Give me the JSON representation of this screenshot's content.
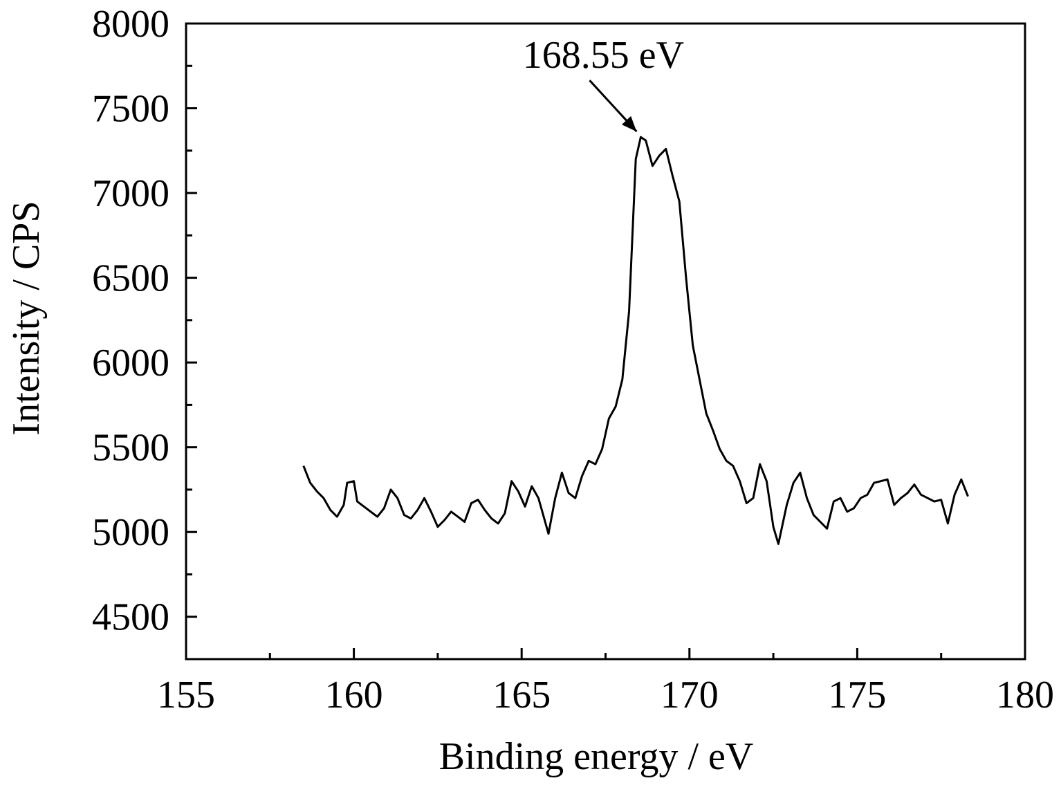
{
  "chart_data": {
    "type": "line",
    "title": "",
    "xlabel": "Binding energy / eV",
    "ylabel": "Intensity / CPS",
    "xlim": [
      155,
      180
    ],
    "ylim": [
      4250,
      8000
    ],
    "x_ticks": [
      155,
      160,
      165,
      170,
      175,
      180
    ],
    "x_minor_ticks": [
      157.5,
      162.5,
      167.5,
      172.5,
      177.5
    ],
    "y_ticks": [
      4500,
      5000,
      5500,
      6000,
      6500,
      7000,
      7500,
      8000
    ],
    "y_minor_ticks": [
      4750,
      5250,
      5750,
      6250,
      6750,
      7250,
      7750
    ],
    "grid": false,
    "legend": "none",
    "annotation": {
      "text": "168.55 eV",
      "x": 168.55,
      "y": 7330
    },
    "series": [
      {
        "x": [
          158.5,
          158.7,
          158.9,
          159.1,
          159.3,
          159.5,
          159.7,
          159.8,
          160.0,
          160.1,
          160.3,
          160.5,
          160.7,
          160.9,
          161.1,
          161.3,
          161.5,
          161.7,
          161.9,
          162.1,
          162.3,
          162.5,
          162.7,
          162.9,
          163.1,
          163.3,
          163.5,
          163.7,
          163.9,
          164.1,
          164.3,
          164.5,
          164.7,
          164.9,
          165.1,
          165.3,
          165.5,
          165.8,
          166.0,
          166.2,
          166.4,
          166.6,
          166.8,
          167.0,
          167.2,
          167.4,
          167.6,
          167.8,
          168.0,
          168.2,
          168.4,
          168.55,
          168.7,
          168.9,
          169.1,
          169.3,
          169.5,
          169.7,
          169.9,
          170.1,
          170.3,
          170.5,
          170.7,
          170.9,
          171.1,
          171.3,
          171.5,
          171.7,
          171.9,
          172.1,
          172.3,
          172.5,
          172.65,
          172.9,
          173.1,
          173.3,
          173.5,
          173.7,
          173.9,
          174.1,
          174.3,
          174.5,
          174.7,
          174.9,
          175.1,
          175.3,
          175.5,
          175.7,
          175.9,
          176.1,
          176.3,
          176.5,
          176.7,
          176.9,
          177.1,
          177.3,
          177.5,
          177.7,
          177.9,
          178.1,
          178.3
        ],
        "y": [
          5390,
          5290,
          5240,
          5200,
          5130,
          5090,
          5160,
          5290,
          5300,
          5180,
          5150,
          5120,
          5090,
          5140,
          5250,
          5200,
          5100,
          5080,
          5130,
          5200,
          5120,
          5030,
          5070,
          5120,
          5090,
          5060,
          5170,
          5190,
          5130,
          5080,
          5050,
          5110,
          5300,
          5240,
          5150,
          5270,
          5200,
          4990,
          5200,
          5350,
          5230,
          5200,
          5330,
          5420,
          5400,
          5490,
          5670,
          5740,
          5900,
          6300,
          7200,
          7330,
          7310,
          7160,
          7220,
          7260,
          7100,
          6950,
          6500,
          6100,
          5900,
          5700,
          5600,
          5490,
          5420,
          5390,
          5300,
          5170,
          5200,
          5400,
          5300,
          5030,
          4930,
          5160,
          5290,
          5350,
          5200,
          5100,
          5060,
          5020,
          5180,
          5200,
          5120,
          5140,
          5200,
          5220,
          5290,
          5300,
          5310,
          5160,
          5200,
          5230,
          5280,
          5220,
          5200,
          5180,
          5190,
          5050,
          5220,
          5310,
          5210
        ]
      }
    ]
  }
}
